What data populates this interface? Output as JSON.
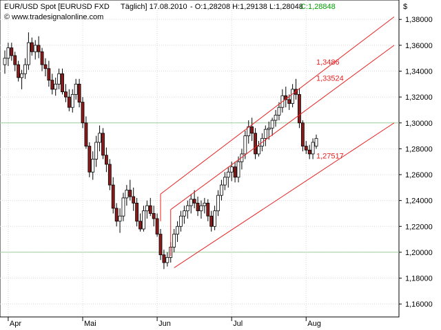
{
  "header": {
    "symbol_text": "EUR/USD Spot [EURUSD FXD",
    "period_text": "Täglich] 17.08.2010",
    "ohlc_text": "- O:1,28208 H:1,29138 L:1,28048",
    "close_text": "C:1,28848",
    "close_color": "#00a000",
    "website": "www.tradesignalonline.com",
    "copyright_symbol": "©",
    "currency_symbol": "$"
  },
  "chart_data": {
    "type": "candlestick",
    "ylim": [
      1.15,
      1.395
    ],
    "y_ticks": [
      1.16,
      1.18,
      1.2,
      1.22,
      1.24,
      1.26,
      1.28,
      1.3,
      1.32,
      1.34,
      1.36,
      1.38
    ],
    "y_tick_labels": [
      "1,16000",
      "1,18000",
      "1,20000",
      "1,22000",
      "1,24000",
      "1,26000",
      "1,28000",
      "1,30000",
      "1,32000",
      "1,34000",
      "1,36000",
      "1,38000"
    ],
    "x_ticks": [
      {
        "label": "Apr",
        "index": 1
      },
      {
        "label": "Mai",
        "index": 23
      },
      {
        "label": "Jun",
        "index": 45
      },
      {
        "label": "Jul",
        "index": 67
      },
      {
        "label": "Aug",
        "index": 89
      }
    ],
    "x_index_range": [
      0,
      115
    ],
    "grid": true,
    "up_color": "#ffffff",
    "down_color": "#8b1a1a",
    "candles": [
      [
        1.345,
        1.356,
        1.338,
        1.35
      ],
      [
        1.35,
        1.362,
        1.344,
        1.358
      ],
      [
        1.358,
        1.362,
        1.348,
        1.352
      ],
      [
        1.352,
        1.355,
        1.34,
        1.345
      ],
      [
        1.345,
        1.348,
        1.332,
        1.335
      ],
      [
        1.335,
        1.341,
        1.326,
        1.338
      ],
      [
        1.338,
        1.35,
        1.334,
        1.345
      ],
      [
        1.345,
        1.37,
        1.341,
        1.362
      ],
      [
        1.362,
        1.366,
        1.352,
        1.355
      ],
      [
        1.355,
        1.364,
        1.349,
        1.36
      ],
      [
        1.36,
        1.367,
        1.35,
        1.355
      ],
      [
        1.355,
        1.358,
        1.34,
        1.345
      ],
      [
        1.345,
        1.35,
        1.336,
        1.342
      ],
      [
        1.342,
        1.348,
        1.328,
        1.333
      ],
      [
        1.333,
        1.338,
        1.322,
        1.326
      ],
      [
        1.326,
        1.335,
        1.321,
        1.33
      ],
      [
        1.33,
        1.342,
        1.326,
        1.338
      ],
      [
        1.338,
        1.342,
        1.322,
        1.324
      ],
      [
        1.324,
        1.33,
        1.316,
        1.32
      ],
      [
        1.32,
        1.326,
        1.309,
        1.312
      ],
      [
        1.312,
        1.326,
        1.308,
        1.322
      ],
      [
        1.322,
        1.334,
        1.318,
        1.33
      ],
      [
        1.33,
        1.334,
        1.312,
        1.316
      ],
      [
        1.316,
        1.32,
        1.296,
        1.3
      ],
      [
        1.3,
        1.305,
        1.28,
        1.282
      ],
      [
        1.282,
        1.285,
        1.258,
        1.262
      ],
      [
        1.262,
        1.278,
        1.256,
        1.272
      ],
      [
        1.272,
        1.29,
        1.266,
        1.285
      ],
      [
        1.285,
        1.298,
        1.278,
        1.292
      ],
      [
        1.292,
        1.296,
        1.272,
        1.275
      ],
      [
        1.275,
        1.281,
        1.262,
        1.268
      ],
      [
        1.268,
        1.272,
        1.248,
        1.252
      ],
      [
        1.252,
        1.258,
        1.23,
        1.234
      ],
      [
        1.234,
        1.238,
        1.22,
        1.224
      ],
      [
        1.224,
        1.234,
        1.215,
        1.228
      ],
      [
        1.228,
        1.246,
        1.224,
        1.242
      ],
      [
        1.242,
        1.252,
        1.236,
        1.248
      ],
      [
        1.248,
        1.256,
        1.24,
        1.243
      ],
      [
        1.243,
        1.25,
        1.232,
        1.238
      ],
      [
        1.238,
        1.242,
        1.22,
        1.224
      ],
      [
        1.224,
        1.23,
        1.216,
        1.218
      ],
      [
        1.218,
        1.236,
        1.216,
        1.232
      ],
      [
        1.232,
        1.24,
        1.226,
        1.236
      ],
      [
        1.236,
        1.242,
        1.228,
        1.23
      ],
      [
        1.23,
        1.236,
        1.22,
        1.226
      ],
      [
        1.226,
        1.23,
        1.212,
        1.214
      ],
      [
        1.214,
        1.218,
        1.194,
        1.198
      ],
      [
        1.198,
        1.202,
        1.187,
        1.192
      ],
      [
        1.192,
        1.2,
        1.189,
        1.196
      ],
      [
        1.196,
        1.208,
        1.192,
        1.204
      ],
      [
        1.204,
        1.218,
        1.2,
        1.214
      ],
      [
        1.214,
        1.224,
        1.208,
        1.22
      ],
      [
        1.22,
        1.232,
        1.216,
        1.228
      ],
      [
        1.228,
        1.236,
        1.222,
        1.232
      ],
      [
        1.232,
        1.24,
        1.226,
        1.236
      ],
      [
        1.236,
        1.245,
        1.23,
        1.241
      ],
      [
        1.241,
        1.248,
        1.234,
        1.238
      ],
      [
        1.238,
        1.243,
        1.228,
        1.232
      ],
      [
        1.232,
        1.24,
        1.226,
        1.236
      ],
      [
        1.236,
        1.242,
        1.23,
        1.238
      ],
      [
        1.238,
        1.241,
        1.224,
        1.228
      ],
      [
        1.228,
        1.232,
        1.216,
        1.22
      ],
      [
        1.22,
        1.236,
        1.217,
        1.232
      ],
      [
        1.232,
        1.248,
        1.228,
        1.244
      ],
      [
        1.244,
        1.256,
        1.24,
        1.252
      ],
      [
        1.252,
        1.262,
        1.248,
        1.258
      ],
      [
        1.258,
        1.266,
        1.25,
        1.262
      ],
      [
        1.262,
        1.27,
        1.255,
        1.266
      ],
      [
        1.266,
        1.27,
        1.254,
        1.258
      ],
      [
        1.258,
        1.274,
        1.254,
        1.27
      ],
      [
        1.27,
        1.28,
        1.264,
        1.276
      ],
      [
        1.276,
        1.294,
        1.272,
        1.29
      ],
      [
        1.29,
        1.302,
        1.284,
        1.297
      ],
      [
        1.297,
        1.304,
        1.286,
        1.292
      ],
      [
        1.292,
        1.296,
        1.272,
        1.276
      ],
      [
        1.276,
        1.286,
        1.274,
        1.282
      ],
      [
        1.282,
        1.292,
        1.278,
        1.288
      ],
      [
        1.288,
        1.298,
        1.282,
        1.295
      ],
      [
        1.295,
        1.301,
        1.287,
        1.296
      ],
      [
        1.296,
        1.304,
        1.29,
        1.302
      ],
      [
        1.302,
        1.31,
        1.297,
        1.306
      ],
      [
        1.306,
        1.316,
        1.302,
        1.312
      ],
      [
        1.312,
        1.326,
        1.308,
        1.321
      ],
      [
        1.321,
        1.328,
        1.312,
        1.318
      ],
      [
        1.318,
        1.322,
        1.31,
        1.315
      ],
      [
        1.315,
        1.33,
        1.312,
        1.326
      ],
      [
        1.326,
        1.334,
        1.318,
        1.322
      ],
      [
        1.322,
        1.327,
        1.296,
        1.3
      ],
      [
        1.3,
        1.302,
        1.278,
        1.282
      ],
      [
        1.282,
        1.286,
        1.276,
        1.279
      ],
      [
        1.279,
        1.283,
        1.272,
        1.276
      ],
      [
        1.276,
        1.288,
        1.272,
        1.285
      ],
      [
        1.282,
        1.291,
        1.28,
        1.288
      ]
    ],
    "channel_lines": [
      {
        "from": [
          46,
          1.245
        ],
        "to": [
          115,
          1.382
        ],
        "label": "1,3486",
        "label_at": [
          92,
          1.345
        ]
      },
      {
        "from": [
          49,
          1.233
        ],
        "to": [
          115,
          1.36
        ],
        "label": "1,33524",
        "label_at": [
          92,
          1.3325
        ]
      },
      {
        "from": [
          50,
          1.188
        ],
        "to": [
          115,
          1.3
        ],
        "label": "1,27517",
        "label_at": [
          92,
          1.2725
        ]
      }
    ],
    "channel_connectors": [
      [
        [
          46,
          1.245
        ],
        [
          46,
          1.224
        ]
      ],
      [
        [
          49,
          1.233
        ],
        [
          49,
          1.197
        ]
      ]
    ],
    "line_color": "#e82020"
  }
}
